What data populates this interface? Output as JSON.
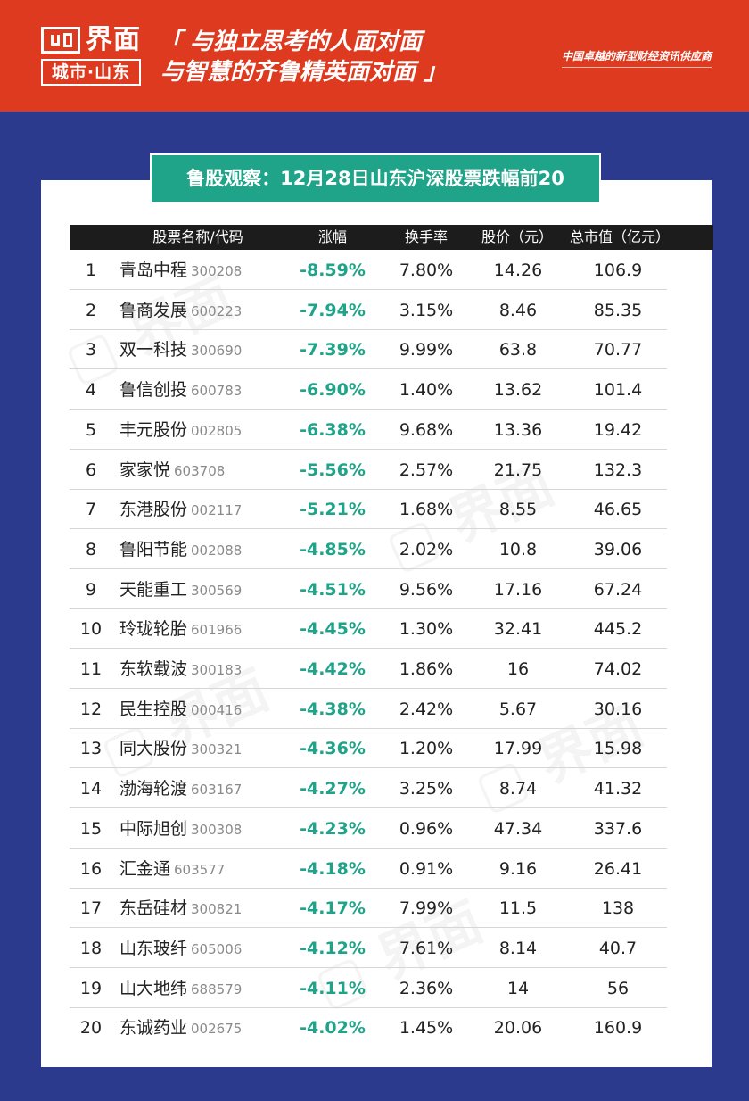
{
  "header": {
    "logo_text": "界面",
    "logo_sub": "城市·山东",
    "slogan_line1": "「 与独立思考的人面对面",
    "slogan_line2": "与智慧的齐鲁精英面对面 」",
    "tagline": "中国卓越的新型财经资讯供应商",
    "bg_color": "#dd3a1f"
  },
  "title": "鲁股观察：12月28日山东沪深股票跌幅前20",
  "columns": {
    "name": "股票名称/代码",
    "change": "涨幅",
    "turnover": "换手率",
    "price": "股价（元）",
    "cap": "总市值（亿元）"
  },
  "rows": [
    {
      "rank": "1",
      "name": "青岛中程",
      "code": "300208",
      "change": "-8.59%",
      "turnover": "7.80%",
      "price": "14.26",
      "cap": "106.9"
    },
    {
      "rank": "2",
      "name": "鲁商发展",
      "code": "600223",
      "change": "-7.94%",
      "turnover": "3.15%",
      "price": "8.46",
      "cap": "85.35"
    },
    {
      "rank": "3",
      "name": "双一科技",
      "code": "300690",
      "change": "-7.39%",
      "turnover": "9.99%",
      "price": "63.8",
      "cap": "70.77"
    },
    {
      "rank": "4",
      "name": "鲁信创投",
      "code": "600783",
      "change": "-6.90%",
      "turnover": "1.40%",
      "price": "13.62",
      "cap": "101.4"
    },
    {
      "rank": "5",
      "name": "丰元股份",
      "code": "002805",
      "change": "-6.38%",
      "turnover": "9.68%",
      "price": "13.36",
      "cap": "19.42"
    },
    {
      "rank": "6",
      "name": "家家悦",
      "code": "603708",
      "change": "-5.56%",
      "turnover": "2.57%",
      "price": "21.75",
      "cap": "132.3"
    },
    {
      "rank": "7",
      "name": "东港股份",
      "code": "002117",
      "change": "-5.21%",
      "turnover": "1.68%",
      "price": "8.55",
      "cap": "46.65"
    },
    {
      "rank": "8",
      "name": "鲁阳节能",
      "code": "002088",
      "change": "-4.85%",
      "turnover": "2.02%",
      "price": "10.8",
      "cap": "39.06"
    },
    {
      "rank": "9",
      "name": "天能重工",
      "code": "300569",
      "change": "-4.51%",
      "turnover": "9.56%",
      "price": "17.16",
      "cap": "67.24"
    },
    {
      "rank": "10",
      "name": "玲珑轮胎",
      "code": "601966",
      "change": "-4.45%",
      "turnover": "1.30%",
      "price": "32.41",
      "cap": "445.2"
    },
    {
      "rank": "11",
      "name": "东软载波",
      "code": "300183",
      "change": "-4.42%",
      "turnover": "1.86%",
      "price": "16",
      "cap": "74.02"
    },
    {
      "rank": "12",
      "name": "民生控股",
      "code": "000416",
      "change": "-4.38%",
      "turnover": "2.42%",
      "price": "5.67",
      "cap": "30.16"
    },
    {
      "rank": "13",
      "name": "同大股份",
      "code": "300321",
      "change": "-4.36%",
      "turnover": "1.20%",
      "price": "17.99",
      "cap": "15.98"
    },
    {
      "rank": "14",
      "name": "渤海轮渡",
      "code": "603167",
      "change": "-4.27%",
      "turnover": "3.25%",
      "price": "8.74",
      "cap": "41.32"
    },
    {
      "rank": "15",
      "name": "中际旭创",
      "code": "300308",
      "change": "-4.23%",
      "turnover": "0.96%",
      "price": "47.34",
      "cap": "337.6"
    },
    {
      "rank": "16",
      "name": "汇金通",
      "code": "603577",
      "change": "-4.18%",
      "turnover": "0.91%",
      "price": "9.16",
      "cap": "26.41"
    },
    {
      "rank": "17",
      "name": "东岳硅材",
      "code": "300821",
      "change": "-4.17%",
      "turnover": "7.99%",
      "price": "11.5",
      "cap": "138"
    },
    {
      "rank": "18",
      "name": "山东玻纤",
      "code": "605006",
      "change": "-4.12%",
      "turnover": "7.61%",
      "price": "8.14",
      "cap": "40.7"
    },
    {
      "rank": "19",
      "name": "山大地纬",
      "code": "688579",
      "change": "-4.11%",
      "turnover": "2.36%",
      "price": "14",
      "cap": "56"
    },
    {
      "rank": "20",
      "name": "东诚药业",
      "code": "002675",
      "change": "-4.02%",
      "turnover": "1.45%",
      "price": "20.06",
      "cap": "160.9"
    }
  ],
  "colors": {
    "background": "#2b3a8c",
    "accent_green": "#1fa489",
    "header_red": "#dd3a1f"
  }
}
